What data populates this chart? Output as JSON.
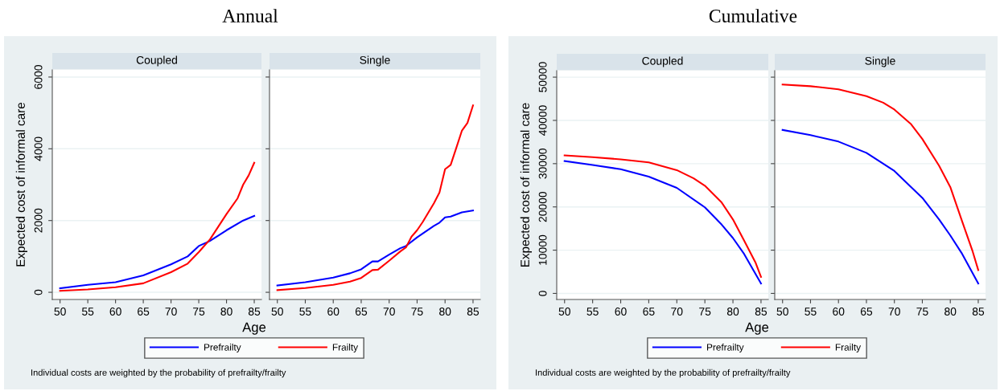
{
  "chart_data": [
    {
      "type": "line",
      "title": "Annual",
      "subtitle": "Coupled",
      "xlabel": "Age",
      "ylabel": "Expected cost of informal care",
      "xlim": [
        48.6,
        86.3
      ],
      "ylim": [
        -200,
        6200
      ],
      "xticks": [
        50,
        55,
        60,
        65,
        70,
        75,
        80,
        85
      ],
      "yticks": [
        0,
        2000,
        4000,
        6000
      ],
      "grid": "y",
      "legend": "bottom",
      "annotations": [
        "Individual costs are weighted by the probability of prefrailty/frailty"
      ],
      "series": [
        {
          "name": "Prefrailty",
          "color": "#0000ff",
          "x": [
            50,
            55,
            60,
            65,
            70,
            73,
            75,
            77,
            80,
            83,
            85
          ],
          "values": [
            110,
            210,
            280,
            470,
            780,
            1000,
            1290,
            1430,
            1730,
            2000,
            2130
          ]
        },
        {
          "name": "Frailty",
          "color": "#ff0000",
          "x": [
            50,
            55,
            60,
            65,
            70,
            73,
            75,
            77,
            80,
            82,
            83,
            84,
            85
          ],
          "values": [
            40,
            80,
            140,
            250,
            560,
            800,
            1120,
            1470,
            2180,
            2620,
            3000,
            3260,
            3610
          ]
        }
      ]
    },
    {
      "type": "line",
      "subtitle": "Single",
      "xlim": [
        48.6,
        86.3
      ],
      "ylim": [
        -200,
        6200
      ],
      "xticks": [
        50,
        55,
        60,
        65,
        70,
        75,
        80,
        85
      ],
      "yticks": [
        0,
        2000,
        4000,
        6000
      ],
      "grid": "y",
      "tick_labels": "x",
      "series": [
        {
          "color": "#0000ff",
          "x": [
            50,
            55,
            60,
            63,
            65,
            67,
            68,
            70,
            72,
            73,
            75,
            78,
            79,
            80,
            81,
            83,
            85
          ],
          "values": [
            190,
            280,
            410,
            530,
            640,
            860,
            860,
            1050,
            1230,
            1290,
            1530,
            1850,
            1940,
            2090,
            2110,
            2230,
            2280
          ]
        },
        {
          "color": "#ff0000",
          "x": [
            50,
            55,
            60,
            63,
            65,
            67,
            68,
            70,
            72,
            73,
            74,
            75,
            76,
            78,
            79,
            80,
            81,
            82,
            83,
            84,
            85
          ],
          "values": [
            60,
            120,
            210,
            300,
            400,
            620,
            630,
            880,
            1140,
            1250,
            1550,
            1730,
            1960,
            2480,
            2780,
            3430,
            3550,
            4020,
            4500,
            4720,
            5210
          ]
        }
      ]
    },
    {
      "type": "line",
      "title": "Cumulative",
      "subtitle": "Coupled",
      "xlabel": "Age",
      "ylabel": "Expected cost of informal care",
      "xlim": [
        48.6,
        86.3
      ],
      "ylim": [
        -1400,
        51500
      ],
      "xticks": [
        50,
        55,
        60,
        65,
        70,
        75,
        80,
        85
      ],
      "yticks": [
        0,
        10000,
        20000,
        30000,
        40000,
        50000
      ],
      "grid": "y",
      "legend": "bottom",
      "annotations": [
        "Individual costs are weighted by the probability of prefrailty/frailty"
      ],
      "series": [
        {
          "name": "Prefrailty",
          "color": "#0000ff",
          "x": [
            50,
            55,
            60,
            65,
            70,
            75,
            78,
            80,
            82,
            85
          ],
          "values": [
            30600,
            29700,
            28700,
            27000,
            24400,
            19900,
            15900,
            12800,
            9100,
            2300
          ]
        },
        {
          "name": "Frailty",
          "color": "#ff0000",
          "x": [
            50,
            55,
            60,
            65,
            70,
            73,
            75,
            78,
            80,
            82,
            84,
            85
          ],
          "values": [
            31900,
            31500,
            31000,
            30300,
            28500,
            26600,
            24900,
            21000,
            17100,
            12200,
            7200,
            3800
          ]
        }
      ]
    },
    {
      "type": "line",
      "subtitle": "Single",
      "xlim": [
        48.6,
        86.3
      ],
      "ylim": [
        -1400,
        51500
      ],
      "xticks": [
        50,
        55,
        60,
        65,
        70,
        75,
        80,
        85
      ],
      "yticks": [
        0,
        10000,
        20000,
        30000,
        40000,
        50000
      ],
      "grid": "y",
      "tick_labels": "x",
      "series": [
        {
          "color": "#0000ff",
          "x": [
            50,
            55,
            60,
            65,
            70,
            75,
            78,
            80,
            82,
            85
          ],
          "values": [
            37800,
            36600,
            35100,
            32500,
            28300,
            22100,
            17100,
            13400,
            9400,
            2300
          ]
        },
        {
          "color": "#ff0000",
          "x": [
            50,
            55,
            60,
            65,
            68,
            70,
            73,
            75,
            78,
            80,
            82,
            84,
            85
          ],
          "values": [
            48300,
            47900,
            47200,
            45600,
            44100,
            42500,
            39100,
            35700,
            29500,
            24600,
            17100,
            9700,
            5400
          ]
        }
      ]
    }
  ]
}
